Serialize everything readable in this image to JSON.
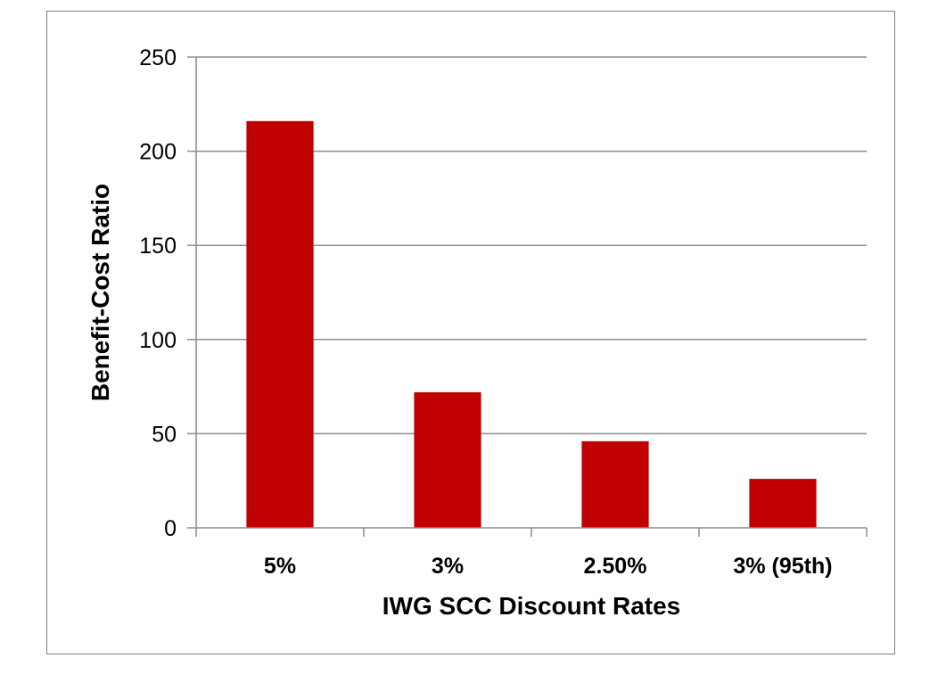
{
  "chart_data": {
    "type": "bar",
    "title": "",
    "xlabel": "IWG SCC Discount Rates",
    "ylabel": "Benefit-Cost Ratio",
    "categories": [
      "5%",
      "3%",
      "2.50%",
      "3% (95th)"
    ],
    "values": [
      216,
      72,
      46,
      26
    ],
    "ylim": [
      0,
      250
    ],
    "yticks": [
      0,
      50,
      100,
      150,
      200,
      250
    ],
    "grid": true,
    "legend": "none",
    "bar_color": "#c00000"
  }
}
